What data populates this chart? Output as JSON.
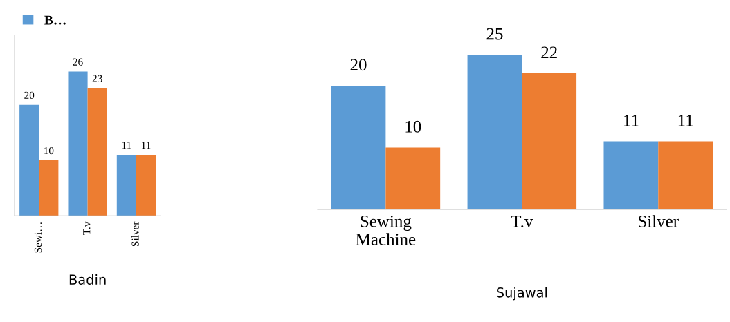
{
  "chart_data": [
    {
      "type": "bar",
      "xlabel": "Badin",
      "categories": [
        "Sewi…",
        "T.v",
        "Silver"
      ],
      "series": [
        {
          "name": "B…",
          "color": "#5b9bd5",
          "values": [
            20,
            26,
            11
          ]
        },
        {
          "color": "#ed7d31",
          "values": [
            10,
            23,
            11
          ]
        }
      ],
      "data_labels": true,
      "legend": "top left",
      "tick_labels": "x"
    },
    {
      "type": "bar",
      "xlabel": "Sujawal",
      "categories": [
        "Sewing\nMachine",
        "T.v",
        "Silver"
      ],
      "series": [
        {
          "color": "#5b9bd5",
          "values": [
            20,
            25,
            11
          ]
        },
        {
          "color": "#ed7d31",
          "values": [
            10,
            22,
            11
          ]
        }
      ],
      "data_labels": true,
      "tick_labels": "x"
    }
  ]
}
